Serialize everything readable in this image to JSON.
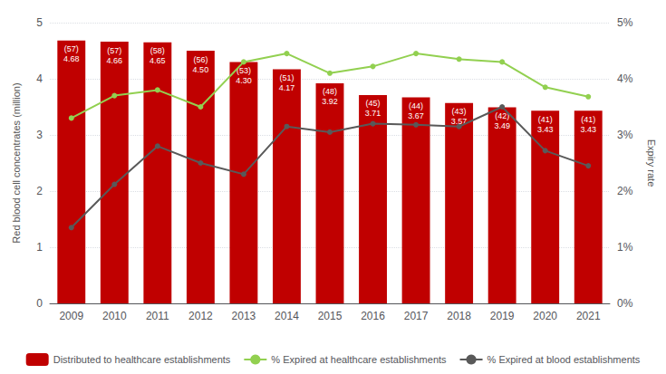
{
  "chart_data": {
    "type": "bar",
    "categories": [
      "2009",
      "2010",
      "2011",
      "2012",
      "2013",
      "2014",
      "2015",
      "2016",
      "2017",
      "2018",
      "2019",
      "2020",
      "2021"
    ],
    "ylabel": "Red blood cell concentrates (million)",
    "y2label": "Expiry rate",
    "ylim": [
      0,
      5
    ],
    "yticks": [
      0,
      1,
      2,
      3,
      4,
      5
    ],
    "y2lim": [
      0,
      5
    ],
    "y2ticks": [
      {
        "value": 0,
        "label": "0%"
      },
      {
        "value": 1,
        "label": "1%"
      },
      {
        "value": 2,
        "label": "2%"
      },
      {
        "value": 3,
        "label": "3%"
      },
      {
        "value": 4,
        "label": "4%"
      },
      {
        "value": 5,
        "label": "5%"
      }
    ],
    "grid": true,
    "legend": "bottom",
    "series": [
      {
        "name": "Distributed to healthcare establishments",
        "type": "bar",
        "color": "#C00000",
        "values": [
          4.68,
          4.66,
          4.65,
          4.5,
          4.3,
          4.17,
          3.92,
          3.71,
          3.67,
          3.57,
          3.49,
          3.43,
          3.43
        ],
        "value_labels": [
          "(57)\n4.68",
          "(57)\n4.66",
          "(58)\n4.65",
          "(56)\n4.50",
          "(53)\n4.30",
          "(51)\n4.17",
          "(48)\n3.92",
          "(45)\n3.71",
          "(44)\n3.67",
          "(43)\n3.57",
          "(42)\n3.49",
          "(41)\n3.43",
          "(41)\n3.43"
        ],
        "data_labels": true
      },
      {
        "name": "% Expired at healthcare establishments",
        "type": "line",
        "axis": "y2",
        "color": "#92D050",
        "marker": "circle",
        "values": [
          3.3,
          3.7,
          3.8,
          3.5,
          4.3,
          4.45,
          4.1,
          4.22,
          4.45,
          4.35,
          4.3,
          3.85,
          3.68
        ]
      },
      {
        "name": "% Expired at blood establishments",
        "type": "line",
        "axis": "y2",
        "color": "#595959",
        "marker": "circle",
        "values": [
          1.35,
          2.12,
          2.8,
          2.5,
          2.3,
          3.15,
          3.05,
          3.2,
          3.18,
          3.15,
          3.5,
          2.72,
          2.45
        ]
      }
    ]
  }
}
